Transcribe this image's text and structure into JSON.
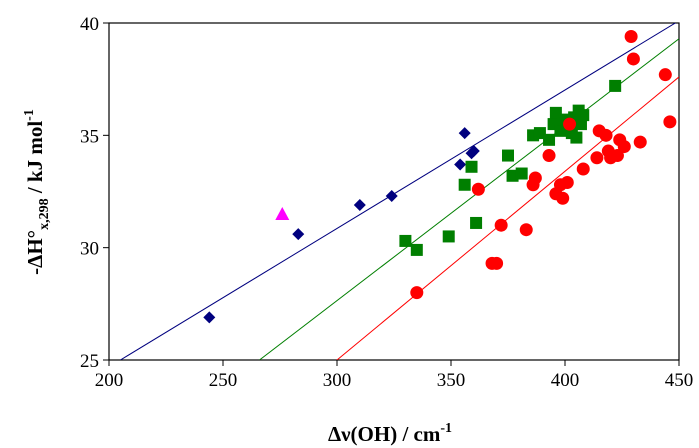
{
  "chart_data": {
    "type": "scatter",
    "title": "",
    "xlabel": {
      "prefix": "Δν(OH) / cm",
      "sup": "-1"
    },
    "ylabel": {
      "prefix": "-ΔH°",
      "sub": "x,298",
      "mid": " / kJ mol",
      "sup": "-1"
    },
    "xlim": [
      200,
      450
    ],
    "ylim": [
      25,
      40
    ],
    "xticks": [
      200,
      250,
      300,
      350,
      400,
      450
    ],
    "yticks": [
      25,
      30,
      35,
      40
    ],
    "grid": false,
    "legend": "none",
    "series": [
      {
        "marker": "diamond",
        "color": "#00007F",
        "points": [
          [
            244,
            26.9
          ],
          [
            283,
            30.6
          ],
          [
            310,
            31.9
          ],
          [
            324,
            32.3
          ],
          [
            354,
            33.7
          ],
          [
            356,
            35.1
          ],
          [
            359,
            34.2
          ],
          [
            360,
            34.3
          ]
        ],
        "fit_line": [
          [
            205,
            25
          ],
          [
            450,
            40.1
          ]
        ]
      },
      {
        "marker": "triangle",
        "color": "#FF00FF",
        "points": [
          [
            276,
            31.5
          ]
        ]
      },
      {
        "marker": "square",
        "color": "#007F00",
        "points": [
          [
            330,
            30.3
          ],
          [
            335,
            29.9
          ],
          [
            349,
            30.5
          ],
          [
            356,
            32.8
          ],
          [
            359,
            33.6
          ],
          [
            361,
            31.1
          ],
          [
            375,
            34.1
          ],
          [
            377,
            33.2
          ],
          [
            381,
            33.3
          ],
          [
            386,
            35.0
          ],
          [
            389,
            35.1
          ],
          [
            393,
            34.8
          ],
          [
            395,
            35.5
          ],
          [
            396,
            36.0
          ],
          [
            398,
            35.2
          ],
          [
            399,
            35.7
          ],
          [
            401,
            35.5
          ],
          [
            402,
            35.4
          ],
          [
            403,
            35.1
          ],
          [
            404,
            35.8
          ],
          [
            405,
            34.9
          ],
          [
            406,
            36.1
          ],
          [
            407,
            35.5
          ],
          [
            408,
            35.9
          ],
          [
            422,
            37.2
          ]
        ],
        "fit_line": [
          [
            266,
            25
          ],
          [
            450,
            39.3
          ]
        ]
      },
      {
        "marker": "circle",
        "color": "#FF0000",
        "points": [
          [
            335,
            28.0
          ],
          [
            362,
            32.6
          ],
          [
            368,
            29.3
          ],
          [
            370,
            29.3
          ],
          [
            372,
            31.0
          ],
          [
            383,
            30.8
          ],
          [
            386,
            32.8
          ],
          [
            387,
            33.1
          ],
          [
            393,
            34.1
          ],
          [
            396,
            32.4
          ],
          [
            398,
            32.8
          ],
          [
            399,
            32.2
          ],
          [
            401,
            32.9
          ],
          [
            402,
            35.5
          ],
          [
            408,
            33.5
          ],
          [
            414,
            34.0
          ],
          [
            415,
            35.2
          ],
          [
            418,
            35.0
          ],
          [
            419,
            34.3
          ],
          [
            420,
            34.0
          ],
          [
            423,
            34.1
          ],
          [
            424,
            34.8
          ],
          [
            426,
            34.5
          ],
          [
            429,
            39.4
          ],
          [
            430,
            38.4
          ],
          [
            433,
            34.7
          ],
          [
            444,
            37.7
          ],
          [
            446,
            35.6
          ]
        ],
        "fit_line": [
          [
            300,
            25
          ],
          [
            450,
            37.6
          ]
        ]
      }
    ]
  }
}
